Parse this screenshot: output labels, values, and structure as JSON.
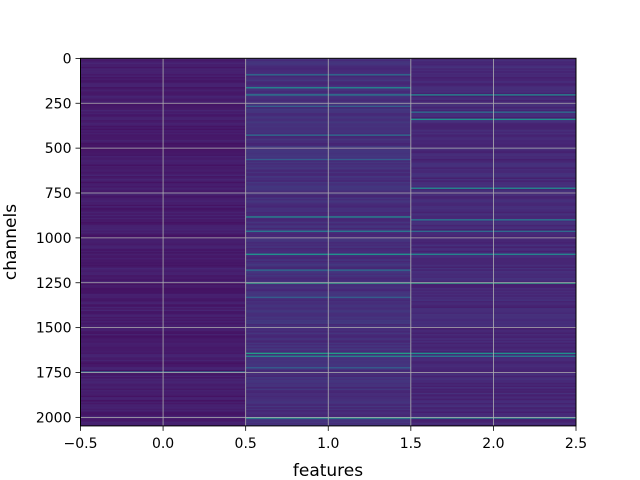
{
  "chart_data": {
    "type": "heatmap",
    "title": "",
    "xlabel": "features",
    "ylabel": "channels",
    "xlim": [
      -0.5,
      2.5
    ],
    "ylim": [
      2047.5,
      -0.5
    ],
    "y_inverted": true,
    "xticks": [
      -0.5,
      0.0,
      0.5,
      1.0,
      1.5,
      2.0,
      2.5
    ],
    "xtick_labels": [
      "−0.5",
      "0.0",
      "0.5",
      "1.0",
      "1.5",
      "2.0",
      "2.5"
    ],
    "yticks": [
      0,
      250,
      500,
      750,
      1000,
      1250,
      1500,
      1750,
      2000
    ],
    "ytick_labels": [
      "0",
      "250",
      "500",
      "750",
      "1000",
      "1250",
      "1500",
      "1750",
      "2000"
    ],
    "grid": true,
    "grid_color": "#b0b0b0",
    "colormap": "viridis",
    "n_rows": 2048,
    "n_cols": 3,
    "columns": [
      {
        "feature": 0,
        "base_value": 0.08,
        "highlights": [
          {
            "channel": 1745,
            "value": 0.35
          }
        ]
      },
      {
        "feature": 1,
        "base_value": 0.14,
        "highlights": [
          {
            "channel": 90,
            "value": 0.35
          },
          {
            "channel": 160,
            "value": 0.45
          },
          {
            "channel": 200,
            "value": 0.4
          },
          {
            "channel": 270,
            "value": 0.3
          },
          {
            "channel": 430,
            "value": 0.35
          },
          {
            "channel": 560,
            "value": 0.3
          },
          {
            "channel": 880,
            "value": 0.45
          },
          {
            "channel": 960,
            "value": 0.4
          },
          {
            "channel": 1090,
            "value": 0.5
          },
          {
            "channel": 1180,
            "value": 0.35
          },
          {
            "channel": 1250,
            "value": 0.6
          },
          {
            "channel": 1330,
            "value": 0.3
          },
          {
            "channel": 1640,
            "value": 0.55
          },
          {
            "channel": 1660,
            "value": 0.45
          },
          {
            "channel": 1720,
            "value": 0.3
          },
          {
            "channel": 2000,
            "value": 0.5
          }
        ]
      },
      {
        "feature": 2,
        "base_value": 0.12,
        "highlights": [
          {
            "channel": 200,
            "value": 0.45
          },
          {
            "channel": 300,
            "value": 0.35
          },
          {
            "channel": 340,
            "value": 0.5
          },
          {
            "channel": 720,
            "value": 0.45
          },
          {
            "channel": 900,
            "value": 0.4
          },
          {
            "channel": 960,
            "value": 0.35
          },
          {
            "channel": 1090,
            "value": 0.45
          },
          {
            "channel": 1250,
            "value": 0.6
          },
          {
            "channel": 1640,
            "value": 0.5
          },
          {
            "channel": 1660,
            "value": 0.4
          },
          {
            "channel": 2000,
            "value": 0.45
          }
        ]
      }
    ]
  }
}
